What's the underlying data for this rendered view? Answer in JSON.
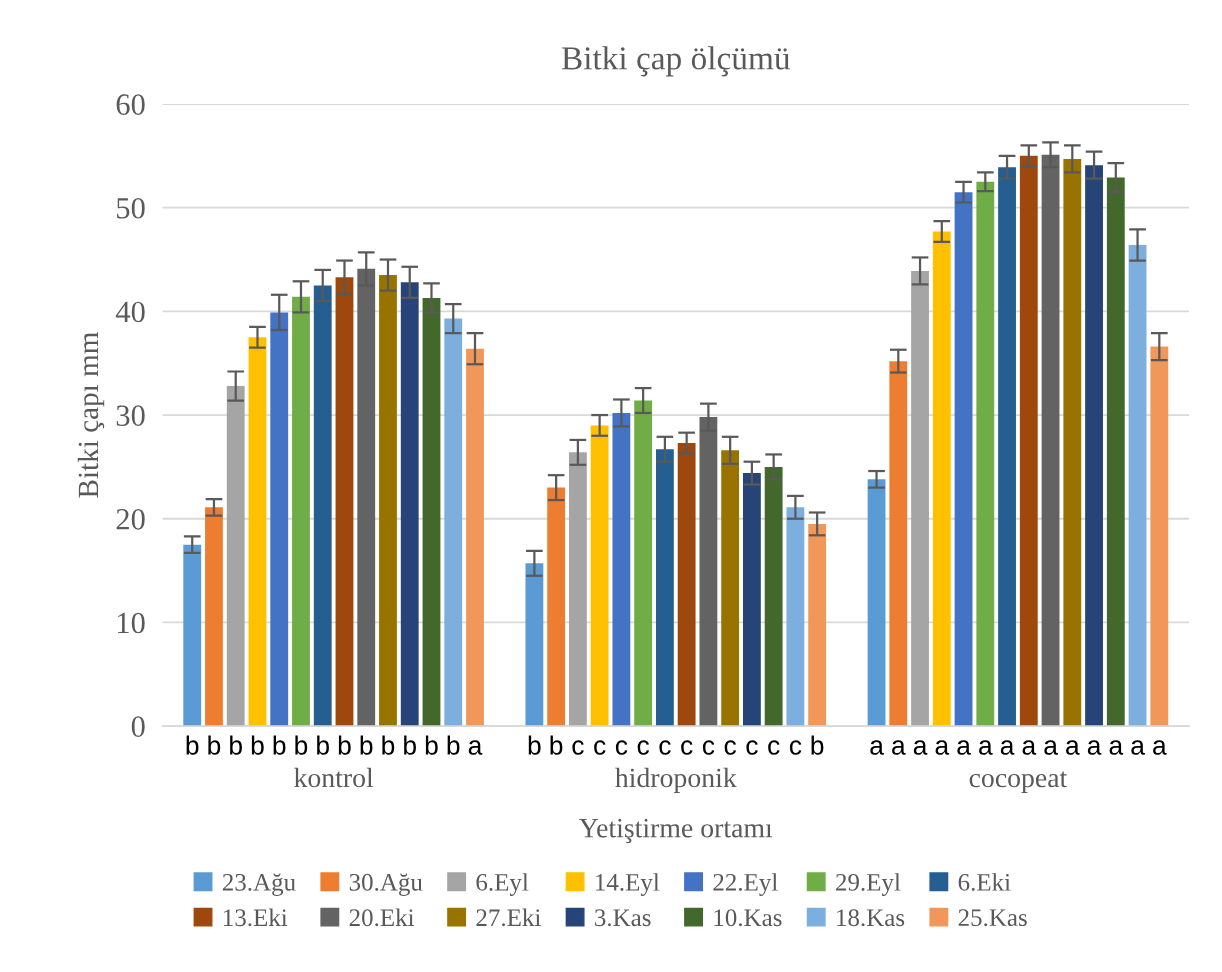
{
  "chart_data": {
    "type": "bar",
    "title": "Bitki çap ölçümü",
    "xlabel": "Yetiştirme ortamı",
    "ylabel": "Bitki çapı mm",
    "categories": [
      "kontrol",
      "hidroponik",
      "cocopeat"
    ],
    "ylim": [
      0,
      60
    ],
    "yticks": [
      0,
      10,
      20,
      30,
      40,
      50,
      60
    ],
    "grid": "y",
    "legend": "bottom",
    "series": [
      {
        "name": "23.Ağu",
        "color": "#5b9bd5",
        "values": [
          17.5,
          15.7,
          23.8
        ],
        "errors": [
          0.8,
          1.2,
          0.8
        ]
      },
      {
        "name": "30.Ağu",
        "color": "#ed7d31",
        "values": [
          21.1,
          23.0,
          35.2
        ],
        "errors": [
          0.8,
          1.2,
          1.1
        ]
      },
      {
        "name": "6.Eyl",
        "color": "#a5a5a5",
        "values": [
          32.8,
          26.4,
          43.9
        ],
        "errors": [
          1.4,
          1.2,
          1.3
        ]
      },
      {
        "name": "14.Eyl",
        "color": "#ffc000",
        "values": [
          37.5,
          29.0,
          47.7
        ],
        "errors": [
          1.0,
          1.0,
          1.0
        ]
      },
      {
        "name": "22.Eyl",
        "color": "#4472c4",
        "values": [
          39.9,
          30.2,
          51.5
        ],
        "errors": [
          1.7,
          1.3,
          1.0
        ]
      },
      {
        "name": "29.Eyl",
        "color": "#70ad47",
        "values": [
          41.4,
          31.4,
          52.5
        ],
        "errors": [
          1.5,
          1.2,
          0.9
        ]
      },
      {
        "name": "6.Eki",
        "color": "#255e91",
        "values": [
          42.5,
          26.7,
          53.9
        ],
        "errors": [
          1.5,
          1.2,
          1.1
        ]
      },
      {
        "name": "13.Eki",
        "color": "#9e480e",
        "values": [
          43.3,
          27.3,
          55.0
        ],
        "errors": [
          1.6,
          1.0,
          1.0
        ]
      },
      {
        "name": "20.Eki",
        "color": "#636363",
        "values": [
          44.1,
          29.8,
          55.1
        ],
        "errors": [
          1.6,
          1.3,
          1.2
        ]
      },
      {
        "name": "27.Eki",
        "color": "#997300",
        "values": [
          43.5,
          26.6,
          54.7
        ],
        "errors": [
          1.5,
          1.3,
          1.3
        ]
      },
      {
        "name": "3.Kas",
        "color": "#264478",
        "values": [
          42.8,
          24.4,
          54.1
        ],
        "errors": [
          1.5,
          1.1,
          1.3
        ]
      },
      {
        "name": "10.Kas",
        "color": "#43682b",
        "values": [
          41.3,
          25.0,
          52.9
        ],
        "errors": [
          1.4,
          1.2,
          1.4
        ]
      },
      {
        "name": "18.Kas",
        "color": "#7cafdd",
        "values": [
          39.3,
          21.1,
          46.4
        ],
        "errors": [
          1.4,
          1.1,
          1.5
        ]
      },
      {
        "name": "25.Kas",
        "color": "#f1975a",
        "values": [
          36.4,
          19.5,
          36.6
        ],
        "errors": [
          1.5,
          1.1,
          1.3
        ]
      }
    ],
    "annotations": [
      "b",
      "b",
      "b",
      "b",
      "b",
      "b",
      "b",
      "b",
      "b",
      "b",
      "b",
      "b",
      "b",
      "a",
      "b",
      "b",
      "c",
      "c",
      "c",
      "c",
      "c",
      "c",
      "c",
      "c",
      "c",
      "c",
      "c",
      "b",
      "a",
      "a",
      "a",
      "a",
      "a",
      "a",
      "a",
      "a",
      "a",
      "a",
      "a",
      "a",
      "a",
      "a"
    ]
  }
}
